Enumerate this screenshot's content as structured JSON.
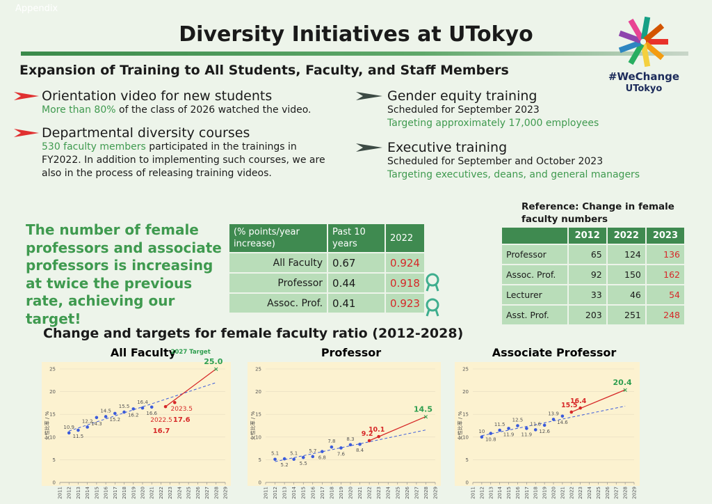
{
  "header": {
    "appendix": "Appendix",
    "title": "Diversity Initiatives at UTokyo",
    "logo_lines": [
      "#WeChange",
      "UTokyo"
    ]
  },
  "section_title": "Expansion of Training to All Students, Faculty, and Staff Members",
  "left_items": [
    {
      "title": "Orientation video for new students",
      "highlight": "More than 80%",
      "text": "of the class of 2026 watched the video."
    },
    {
      "title": "Departmental diversity courses",
      "highlight": "530 faculty members",
      "text": "participated in the trainings in FY2022. In addition to implementing such courses, we are also in the process of releasing training videos."
    }
  ],
  "right_items": [
    {
      "title": "Gender equity training",
      "schedule": "Scheduled for September 2023",
      "target": "Targeting approximately 17,000 employees"
    },
    {
      "title": "Executive training",
      "schedule": "Scheduled for September and October 2023",
      "target": "Targeting executives, deans, and general managers"
    }
  ],
  "statement": "The number of female professors and associate professors is increasing at twice the previous rate, achieving our target!",
  "rate_table": {
    "header": [
      "(% points/year increase)",
      "Past 10 years",
      "2022"
    ],
    "rows": [
      [
        "All Faculty",
        0.67,
        0.924
      ],
      [
        "Professor",
        0.44,
        0.918
      ],
      [
        "Assoc. Prof.",
        0.41,
        0.923
      ]
    ]
  },
  "count_table": {
    "title": "Reference: Change  in female faculty numbers",
    "columns": [
      "2012",
      "2022",
      "2023"
    ],
    "rows": [
      {
        "label": "Professor",
        "values": [
          65,
          124,
          136
        ]
      },
      {
        "label": "Assoc. Prof.",
        "values": [
          92,
          150,
          162
        ]
      },
      {
        "label": "Lecturer",
        "values": [
          33,
          46,
          54
        ]
      },
      {
        "label": "Asst. Prof.",
        "values": [
          203,
          251,
          248
        ]
      }
    ]
  },
  "charts": {
    "title": "Change and targets for female faculty ratio (2012-2028)",
    "items": [
      {
        "type": "scatter",
        "title": "All Faculty",
        "y_label": "女性比率 / %",
        "annotation": "2027 Target",
        "xlim": [
          2011,
          2029
        ],
        "xticks": [
          2011,
          2012,
          2013,
          2014,
          2015,
          2016,
          2017,
          2018,
          2019,
          2020,
          2021,
          2022,
          2023,
          2024,
          2025,
          2026,
          2027,
          2028,
          2029
        ],
        "ylim": [
          0,
          25
        ],
        "yticks": [
          0,
          5,
          10,
          15,
          20,
          25
        ],
        "series": [
          {
            "color": "#3b5bdb",
            "x": [
              2012,
              2013,
              2014,
              2015,
              2016,
              2017,
              2018,
              2019,
              2020,
              2021
            ],
            "values": [
              10.9,
              11.5,
              12.2,
              14.3,
              14.5,
              15.2,
              15.5,
              16.2,
              16.4,
              16.6
            ]
          },
          {
            "color": "#d62828",
            "x": [
              2022.5,
              2023.5
            ],
            "values": [
              16.7,
              17.6
            ]
          },
          {
            "color": "#2e9e4f",
            "x": [
              2028
            ],
            "values": [
              25
            ],
            "value_labels": [
              "25.0"
            ]
          }
        ]
      },
      {
        "type": "scatter",
        "title": "Professor",
        "y_label": "女性比率 / %",
        "xlim": [
          2011,
          2029
        ],
        "xticks": [
          2011,
          2012,
          2013,
          2014,
          2015,
          2016,
          2017,
          2018,
          2019,
          2020,
          2021,
          2022,
          2023,
          2024,
          2025,
          2026,
          2027,
          2028,
          2029
        ],
        "ylim": [
          0,
          25
        ],
        "yticks": [
          0,
          5,
          10,
          15,
          20,
          25
        ],
        "series": [
          {
            "color": "#3b5bdb",
            "x": [
              2012,
              2013,
              2014,
              2015,
              2016,
              2017,
              2018,
              2019,
              2020,
              2021
            ],
            "values": [
              5.1,
              5.2,
              5.1,
              5.5,
              5.7,
              6.8,
              7.8,
              7.6,
              8.3,
              8.4
            ]
          },
          {
            "color": "#d62828",
            "x": [
              2022,
              2023
            ],
            "values": [
              9.2,
              10.1
            ]
          },
          {
            "color": "#2e9e4f",
            "x": [
              2028
            ],
            "values": [
              14.5
            ]
          }
        ]
      },
      {
        "type": "scatter",
        "title": "Associate Professor",
        "y_label": "女性比率 / %",
        "xlim": [
          2011,
          2029
        ],
        "xticks": [
          2011,
          2012,
          2013,
          2014,
          2015,
          2016,
          2017,
          2018,
          2019,
          2020,
          2021,
          2022,
          2023,
          2024,
          2025,
          2026,
          2027,
          2028,
          2029
        ],
        "ylim": [
          0,
          25
        ],
        "yticks": [
          0,
          5,
          10,
          15,
          20,
          25
        ],
        "series": [
          {
            "color": "#3b5bdb",
            "x": [
              2012,
              2013,
              2014,
              2015,
              2016,
              2017,
              2018,
              2019,
              2020,
              2021
            ],
            "values": [
              10.0,
              10.8,
              11.5,
              11.9,
              12.5,
              11.9,
              11.6,
              12.6,
              13.9,
              14.6
            ]
          },
          {
            "color": "#d62828",
            "x": [
              2022,
              2023
            ],
            "values": [
              15.5,
              16.4
            ]
          },
          {
            "color": "#2e9e4f",
            "x": [
              2028
            ],
            "values": [
              20.4
            ]
          }
        ]
      }
    ]
  }
}
